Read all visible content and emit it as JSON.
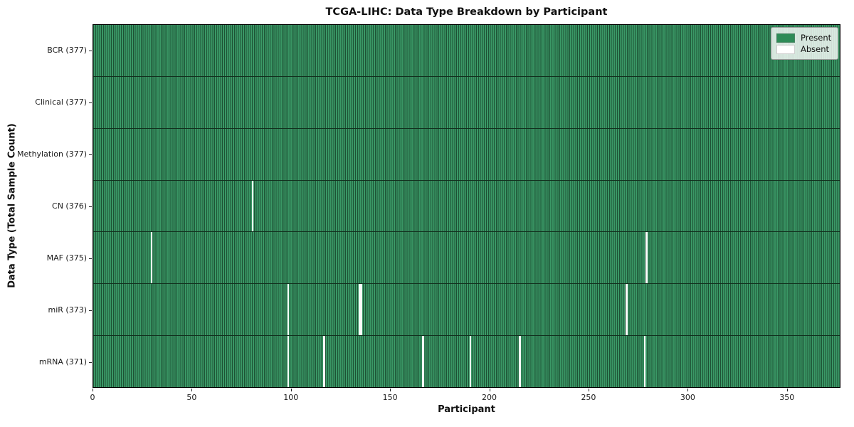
{
  "figure": {
    "title": "TCGA-LIHC: Data Type Breakdown by Participant",
    "xlabel": "Participant",
    "ylabel": "Data Type (Total Sample Count)"
  },
  "legend": {
    "items": [
      {
        "label": "Present",
        "color": "#2e8b57"
      },
      {
        "label": "Absent",
        "color": "#ffffff"
      }
    ]
  },
  "colors": {
    "present_fill": "#2e8b57",
    "present_stripe_light": "#3a9866",
    "present_stripe_dark": "#1d5134",
    "absent_fill": "#ffffff",
    "plot_border": "#000000",
    "row_divider": "#12301e"
  },
  "chart_data": {
    "type": "heatmap",
    "title": "TCGA-LIHC: Data Type Breakdown by Participant",
    "xlabel": "Participant",
    "ylabel": "Data Type (Total Sample Count)",
    "n_participants": 377,
    "x_range": [
      0,
      377
    ],
    "x_ticks": [
      0,
      50,
      100,
      150,
      200,
      250,
      300,
      350
    ],
    "legend_entries": [
      "Present",
      "Absent"
    ],
    "legend_position": "upper right",
    "grid": false,
    "rows": [
      {
        "label": "BCR",
        "total": 377,
        "tick_label": "BCR (377)",
        "absent_participants": []
      },
      {
        "label": "Clinical",
        "total": 377,
        "tick_label": "Clinical (377)",
        "absent_participants": []
      },
      {
        "label": "Methylation",
        "total": 377,
        "tick_label": "Methylation (377)",
        "absent_participants": []
      },
      {
        "label": "CN",
        "total": 376,
        "tick_label": "CN (376)",
        "absent_participants": [
          80
        ]
      },
      {
        "label": "MAF",
        "total": 375,
        "tick_label": "MAF (375)",
        "absent_participants": [
          29,
          279
        ]
      },
      {
        "label": "miR",
        "total": 373,
        "tick_label": "miR (373)",
        "absent_participants": [
          98,
          134,
          135,
          269
        ]
      },
      {
        "label": "mRNA",
        "total": 371,
        "tick_label": "mRNA (371)",
        "absent_participants": [
          98,
          116,
          166,
          190,
          215,
          278
        ]
      }
    ]
  }
}
